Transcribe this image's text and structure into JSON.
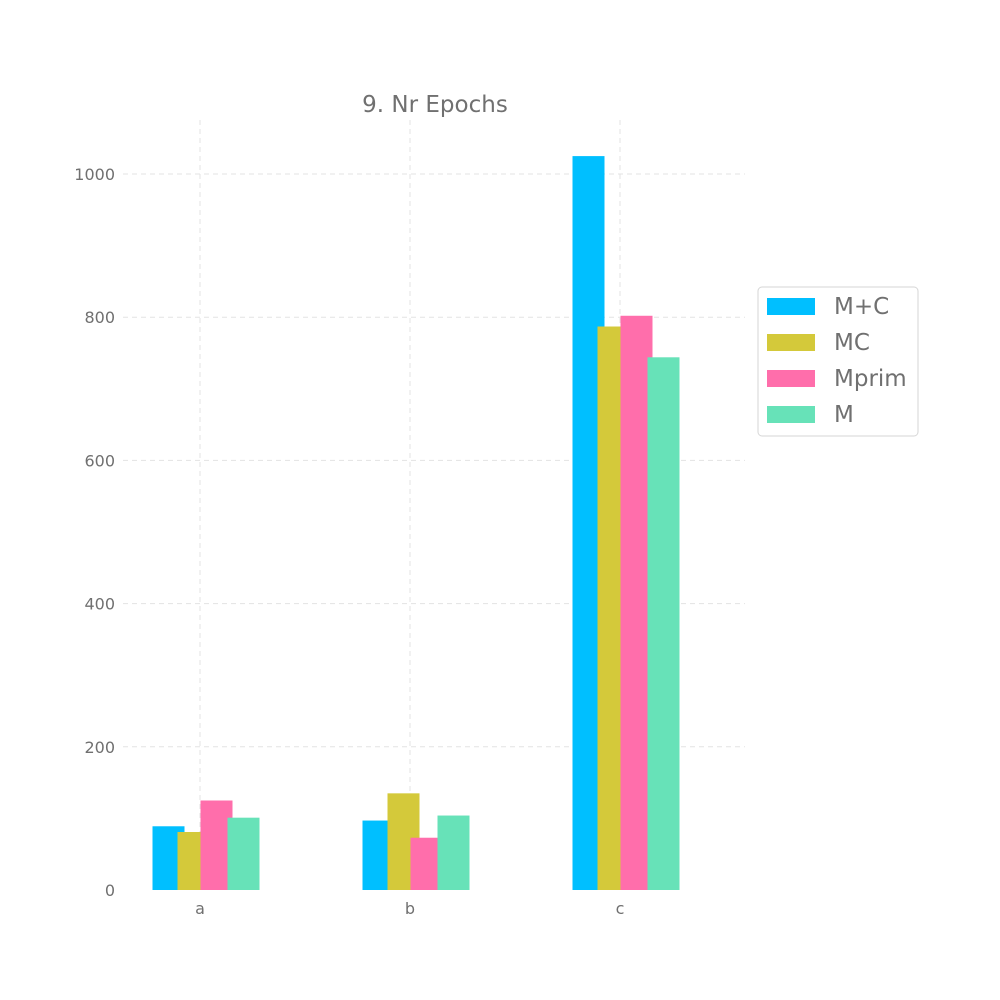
{
  "chart_data": {
    "type": "bar",
    "title": "9. Nr Epochs",
    "xlabel": "",
    "ylabel": "",
    "categories": [
      "a",
      "b",
      "c"
    ],
    "ylim": [
      0,
      1075
    ],
    "yticks": [
      0,
      200,
      400,
      600,
      800,
      1000
    ],
    "grid": true,
    "legend_position": "right",
    "series": [
      {
        "name": "M+C",
        "color": "#00bfff",
        "values": [
          89,
          97,
          1025
        ]
      },
      {
        "name": "MC",
        "color": "#d4c93a",
        "values": [
          81,
          135,
          787
        ]
      },
      {
        "name": "Mprim",
        "color": "#ff6eab",
        "values": [
          125,
          73,
          802
        ]
      },
      {
        "name": "M",
        "color": "#67e2b8",
        "values": [
          101,
          104,
          744
        ]
      }
    ]
  }
}
